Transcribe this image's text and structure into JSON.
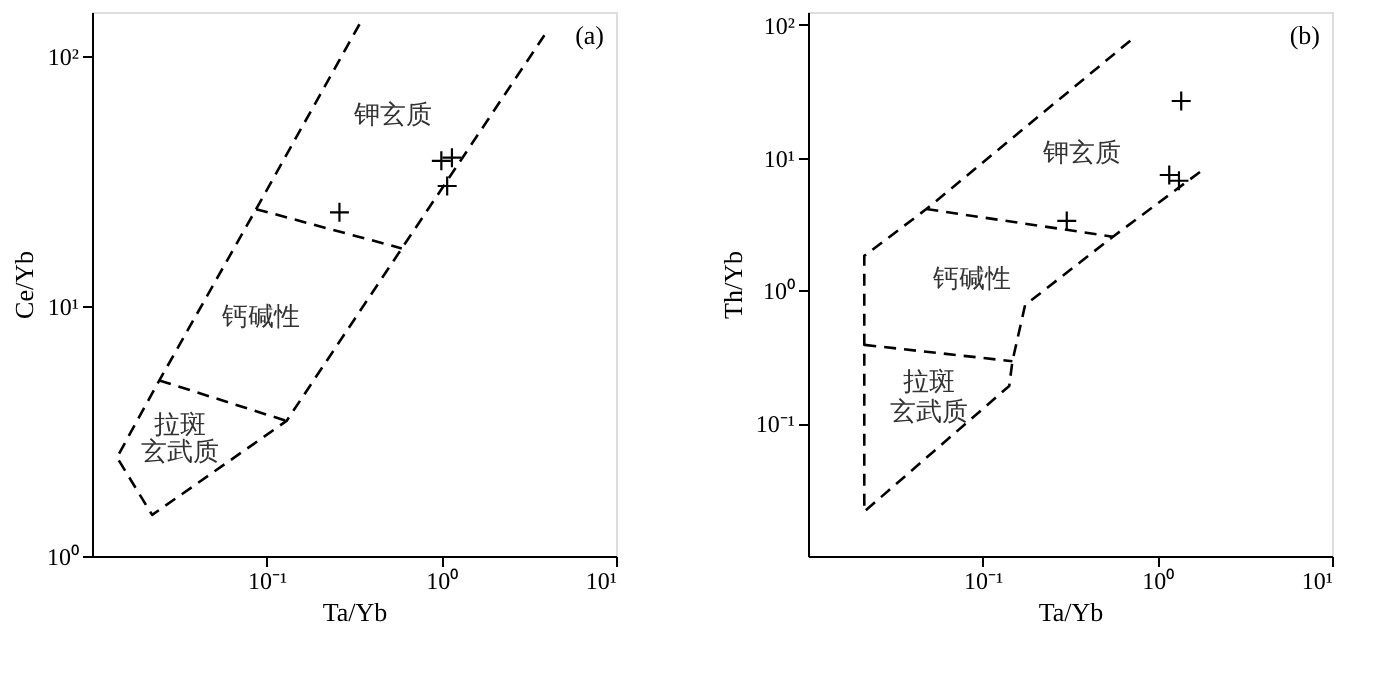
{
  "chart_data": [
    {
      "type": "scatter",
      "xlabel": "Ta/Yb",
      "ylabel": "Ce/Yb",
      "log": "xy",
      "grid": false,
      "xlim": [
        0.01,
        10
      ],
      "ylim": [
        1,
        150
      ],
      "xticks": [
        {
          "value": 0.1,
          "label": "10⁻¹"
        },
        {
          "value": 1,
          "label": "10⁰"
        },
        {
          "value": 10,
          "label": "10¹"
        }
      ],
      "yticks": [
        {
          "value": 1,
          "label": "10⁰"
        },
        {
          "value": 10,
          "label": "10¹"
        },
        {
          "value": 100,
          "label": "10²"
        }
      ],
      "series": [
        {
          "type": "line",
          "color": "#000000",
          "line_style": "dashed",
          "marker": "none",
          "x": [
            0.34,
            0.087,
            0.0243,
            0.0139,
            0.0221,
            0.13,
            0.594,
            3.89
          ],
          "values": [
            134,
            24.4,
            5.04,
            2.48,
            1.46,
            3.47,
            17.0,
            121
          ]
        },
        {
          "type": "line",
          "color": "#000000",
          "line_style": "dashed",
          "marker": "none",
          "x": [
            0.087,
            0.594
          ],
          "values": [
            24.4,
            17.0
          ]
        },
        {
          "type": "line",
          "color": "#000000",
          "line_style": "dashed",
          "marker": "none",
          "x": [
            0.0243,
            0.13
          ],
          "values": [
            5.04,
            3.47
          ]
        },
        {
          "color": "#000000",
          "marker": "cross",
          "x": [
            0.261,
            1.0,
            1.15,
            1.08
          ],
          "values": [
            23.7,
            38.1,
            39.2,
            30.2
          ]
        }
      ],
      "annotations": [
        "(a)",
        "钾玄质",
        "钙碱性",
        "拉斑",
        "玄武质"
      ]
    },
    {
      "type": "scatter",
      "xlabel": "Ta/Yb",
      "ylabel": "Th/Yb",
      "log": "xy",
      "grid": false,
      "xlim": [
        0.01,
        10
      ],
      "ylim": [
        0.01,
        125
      ],
      "xticks": [
        {
          "value": 0.1,
          "label": "10⁻¹"
        },
        {
          "value": 1,
          "label": "10⁰"
        },
        {
          "value": 10,
          "label": "10¹"
        }
      ],
      "yticks": [
        {
          "value": 0.1,
          "label": "10⁻¹"
        },
        {
          "value": 1,
          "label": "10⁰"
        },
        {
          "value": 10,
          "label": "10¹"
        },
        {
          "value": 100,
          "label": "10²"
        }
      ],
      "series": [
        {
          "type": "line",
          "color": "#000000",
          "line_style": "dashed",
          "marker": "none",
          "x": [
            0.7,
            0.0476,
            0.021,
            0.021,
            0.142,
            0.148,
            0.175,
            0.557,
            1.8
          ],
          "values": [
            76,
            4.1,
            1.82,
            0.0216,
            0.191,
            0.293,
            0.776,
            2.54,
            8.0
          ]
        },
        {
          "type": "line",
          "color": "#000000",
          "line_style": "dashed",
          "marker": "none",
          "x": [
            0.0476,
            0.557
          ],
          "values": [
            4.1,
            2.54
          ]
        },
        {
          "type": "line",
          "color": "#000000",
          "line_style": "dashed",
          "marker": "none",
          "x": [
            0.021,
            0.148
          ],
          "values": [
            0.389,
            0.293
          ]
        },
        {
          "color": "#000000",
          "marker": "cross",
          "x": [
            1.37,
            1.17,
            1.33,
            0.303
          ],
          "values": [
            26.7,
            7.4,
            6.7,
            3.34
          ]
        }
      ],
      "annotations": [
        "(b)",
        "钾玄质",
        "钙碱性",
        "拉斑",
        "玄武质"
      ]
    }
  ]
}
